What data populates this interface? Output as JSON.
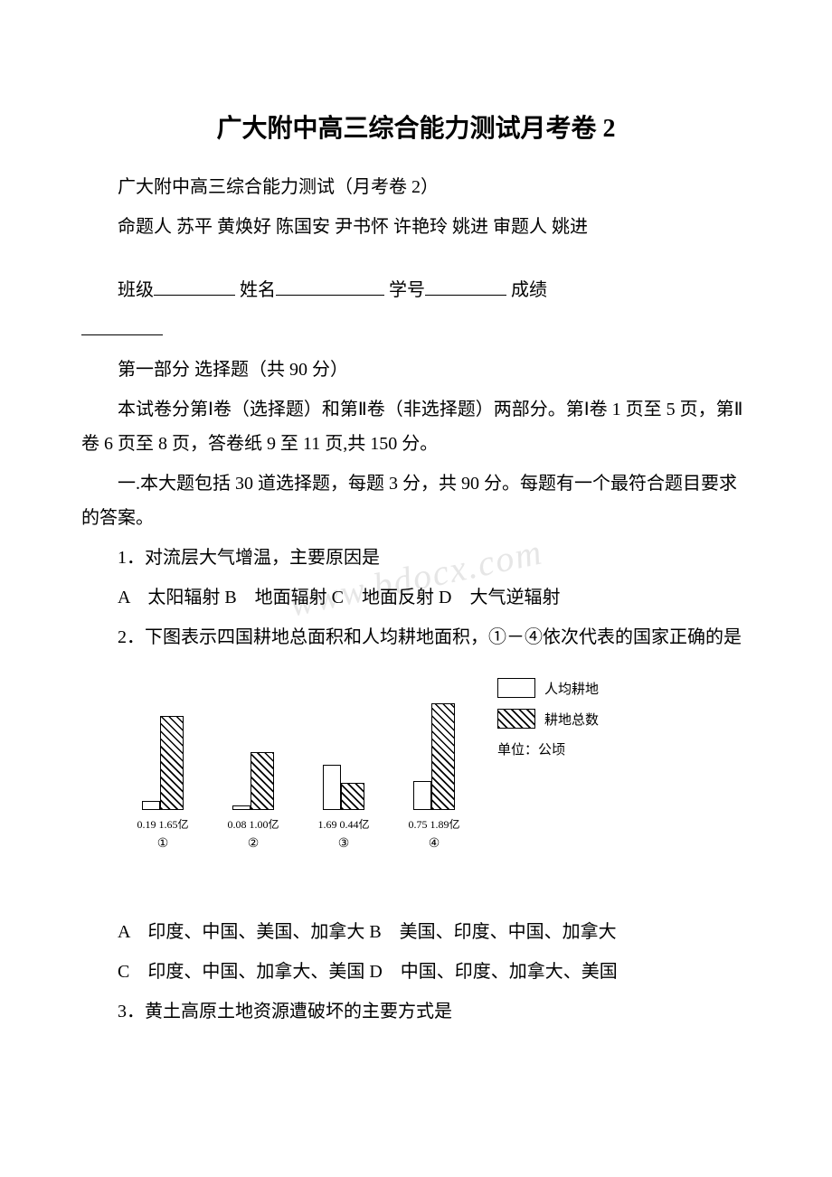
{
  "title": "广大附中高三综合能力测试月考卷 2",
  "subtitle": "广大附中高三综合能力测试（月考卷 2）",
  "authors": "命题人 苏平 黄焕好 陈国安 尹书怀 许艳玲 姚进 审题人 姚进",
  "form_line": {
    "class": "班级",
    "name": "姓名",
    "id": "学号",
    "score": "成绩"
  },
  "part1_header": "第一部分 选择题（共 90 分）",
  "instructions": "本试卷分第Ⅰ卷（选择题）和第Ⅱ卷（非选择题）两部分。第Ⅰ卷 1 页至 5 页，第Ⅱ卷 6 页至 8 页，答卷纸 9 至 11 页,共 150 分。",
  "section1": "一.本大题包括 30 道选择题，每题 3 分，共 90 分。每题有一个最符合题目要求的答案。",
  "q1_text": "1．对流层大气增温，主要原因是",
  "q1_options": "A　太阳辐射 B　地面辐射 C　地面反射 D　大气逆辐射",
  "q2_text": "2．下图表示四国耕地总面积和人均耕地面积，①－④依次代表的国家正确的是",
  "q2_optA": "A　印度、中国、美国、加拿大 B　美国、印度、中国、加拿大",
  "q2_optC": "C　印度、中国、加拿大、美国 D　中国、印度、加拿大、美国",
  "q3_text": "3．黄土高原土地资源遭破坏的主要方式是",
  "chart": {
    "type": "bar",
    "groups": [
      {
        "percapita": 0.19,
        "total_yi": 1.65,
        "percapita_h": 10,
        "total_h": 104,
        "circle": "①"
      },
      {
        "percapita": 0.08,
        "total_yi": 1.0,
        "percapita_h": 5,
        "total_h": 64,
        "circle": "②"
      },
      {
        "percapita": 1.69,
        "total_yi": 0.44,
        "percapita_h": 50,
        "total_h": 30,
        "circle": "③"
      },
      {
        "percapita": 0.75,
        "total_yi": 1.89,
        "percapita_h": 32,
        "total_h": 118,
        "circle": "④"
      }
    ],
    "bar_width_plain": 20,
    "bar_width_hatched": 26,
    "border_color": "#000000",
    "hatch_angle": 45,
    "legend": {
      "plain": "人均耕地",
      "hatched": "耕地总数",
      "unit": "单位：公顷"
    },
    "label_fontsize": 12,
    "label_fontfamily": "SimSun"
  },
  "watermark": "www.bdocx.com"
}
